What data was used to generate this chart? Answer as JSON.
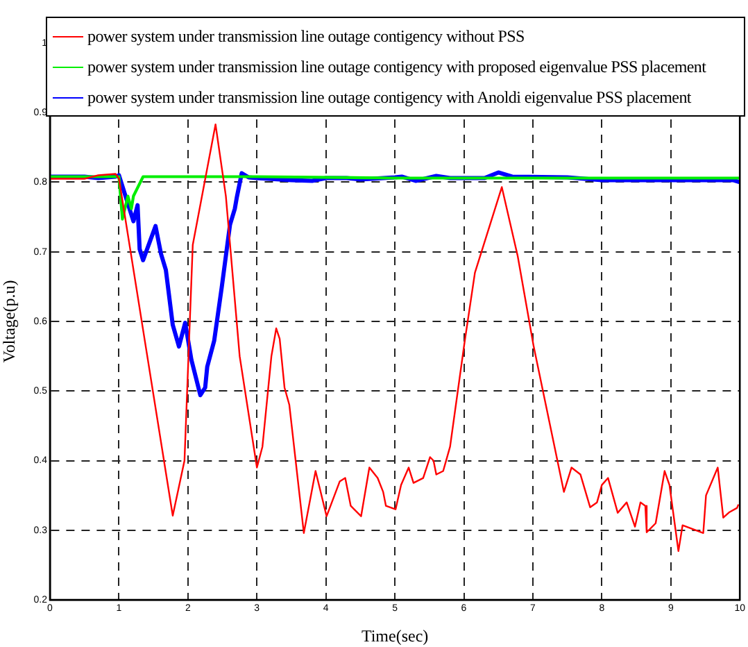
{
  "chart_data": {
    "type": "line",
    "xlabel": "Time(sec)",
    "ylabel": "Voltage(p.u)",
    "xlim": [
      0,
      10
    ],
    "ylim": [
      0.2,
      1
    ],
    "xticks": [
      0,
      1,
      2,
      3,
      4,
      5,
      6,
      7,
      8,
      9,
      10
    ],
    "yticks": [
      0.2,
      0.3,
      0.4,
      0.5,
      0.6,
      0.7,
      0.8,
      0.9,
      1
    ],
    "grid": true,
    "legend": "top",
    "marker": "none",
    "series": [
      {
        "name": "power system under transmission line outage contigency without PSS",
        "color": "#ff0000",
        "x": [
          0,
          0.5,
          0.7,
          0.95,
          1.0,
          1.78,
          1.95,
          2.07,
          2.4,
          2.55,
          2.75,
          3.0,
          3.08,
          3.21,
          3.28,
          3.33,
          3.4,
          3.47,
          3.68,
          3.85,
          4.01,
          4.2,
          4.28,
          4.36,
          4.51,
          4.63,
          4.75,
          4.83,
          4.87,
          5.01,
          5.09,
          5.2,
          5.27,
          5.41,
          5.51,
          5.56,
          5.6,
          5.7,
          5.8,
          6.01,
          6.16,
          6.55,
          6.78,
          7.01,
          7.45,
          7.56,
          7.69,
          7.83,
          7.93,
          8.0,
          8.09,
          8.23,
          8.36,
          8.48,
          8.56,
          8.63,
          8.65,
          8.78,
          8.91,
          8.98,
          9.11,
          9.17,
          9.47,
          9.51,
          9.68,
          9.76,
          9.85,
          9.96,
          9.98
        ],
        "values": [
          0.805,
          0.805,
          0.81,
          0.812,
          0.805,
          0.321,
          0.4,
          0.71,
          0.883,
          0.78,
          0.55,
          0.39,
          0.42,
          0.55,
          0.59,
          0.575,
          0.505,
          0.48,
          0.296,
          0.385,
          0.32,
          0.37,
          0.375,
          0.335,
          0.32,
          0.39,
          0.375,
          0.355,
          0.335,
          0.33,
          0.365,
          0.39,
          0.368,
          0.375,
          0.405,
          0.4,
          0.38,
          0.385,
          0.42,
          0.57,
          0.67,
          0.793,
          0.694,
          0.565,
          0.355,
          0.39,
          0.38,
          0.333,
          0.34,
          0.365,
          0.375,
          0.325,
          0.34,
          0.305,
          0.34,
          0.335,
          0.297,
          0.31,
          0.385,
          0.365,
          0.27,
          0.307,
          0.296,
          0.35,
          0.39,
          0.318,
          0.326,
          0.332,
          0.337
        ]
      },
      {
        "name": "power system under transmission line outage contigency with proposed eigenvalue PSS placement",
        "color": "#00ee00",
        "x": [
          0,
          1.0,
          1.05,
          1.13,
          1.18,
          1.21,
          1.35,
          3.0,
          5.0,
          10
        ],
        "values": [
          0.808,
          0.808,
          0.747,
          0.78,
          0.762,
          0.78,
          0.808,
          0.808,
          0.806,
          0.806
        ]
      },
      {
        "name": "power system under transmission line outage contigency with Anoldi eigenvalue PSS placement",
        "color": "#0000ff",
        "x": [
          0,
          0.5,
          0.7,
          0.95,
          1.0,
          1.21,
          1.27,
          1.3,
          1.35,
          1.53,
          1.61,
          1.68,
          1.78,
          1.87,
          1.96,
          2.05,
          2.18,
          2.25,
          2.28,
          2.38,
          2.49,
          2.61,
          2.68,
          2.71,
          2.78,
          2.88,
          3.0,
          3.5,
          3.8,
          4.0,
          4.3,
          4.5,
          5.0,
          5.1,
          5.3,
          5.6,
          5.8,
          6.3,
          6.5,
          6.7,
          7.5,
          8.0,
          9.9,
          10
        ],
        "values": [
          0.808,
          0.808,
          0.806,
          0.808,
          0.81,
          0.744,
          0.767,
          0.704,
          0.688,
          0.737,
          0.697,
          0.674,
          0.595,
          0.564,
          0.598,
          0.545,
          0.494,
          0.505,
          0.535,
          0.572,
          0.649,
          0.739,
          0.762,
          0.779,
          0.813,
          0.807,
          0.806,
          0.803,
          0.802,
          0.806,
          0.806,
          0.804,
          0.807,
          0.808,
          0.802,
          0.809,
          0.806,
          0.806,
          0.814,
          0.808,
          0.807,
          0.803,
          0.803,
          0.8
        ]
      }
    ]
  }
}
